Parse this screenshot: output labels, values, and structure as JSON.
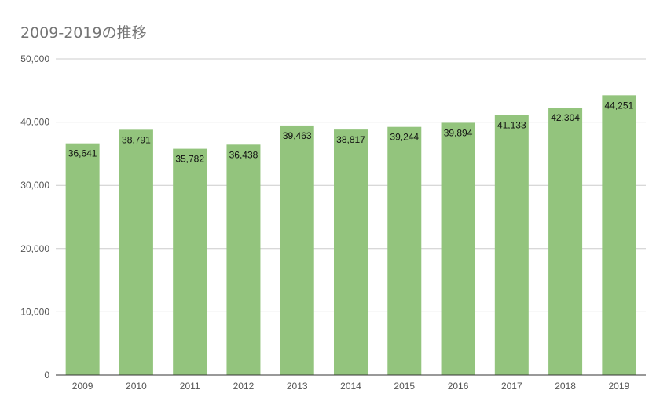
{
  "chart_data": {
    "type": "bar",
    "title": "2009-2019の推移",
    "xlabel": "",
    "ylabel": "",
    "categories": [
      "2009",
      "2010",
      "2011",
      "2012",
      "2013",
      "2014",
      "2015",
      "2016",
      "2017",
      "2018",
      "2019"
    ],
    "values": [
      36641,
      38791,
      35782,
      36438,
      39463,
      38817,
      39244,
      39894,
      41133,
      42304,
      44251
    ],
    "data_labels": [
      "36,641",
      "38,791",
      "35,782",
      "36,438",
      "39,463",
      "38,817",
      "39,244",
      "39,894",
      "41,133",
      "42,304",
      "44,251"
    ],
    "ylim": [
      0,
      50000
    ],
    "y_ticks": [
      0,
      10000,
      20000,
      30000,
      40000,
      50000
    ],
    "y_tick_labels": [
      "0",
      "10,000",
      "20,000",
      "30,000",
      "40,000",
      "50,000"
    ],
    "grid": true,
    "legend": "none",
    "bar_color": "#93c47d",
    "grid_color": "#cccccc",
    "axis_color": "#333333"
  }
}
